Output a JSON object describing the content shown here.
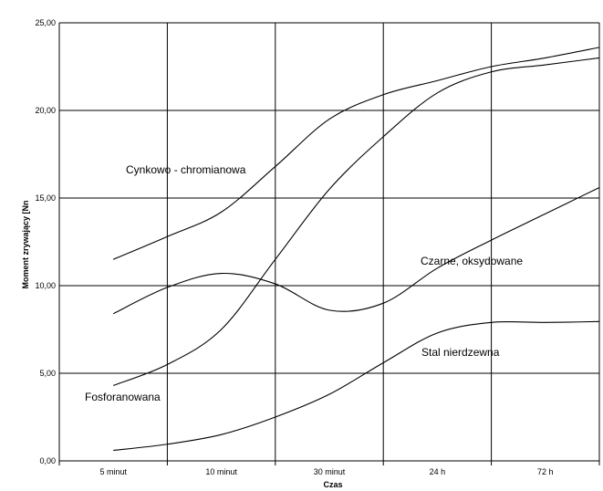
{
  "chart_data": {
    "type": "line",
    "title": "",
    "xlabel": "Czas",
    "ylabel": "Moment zrywający [Nn",
    "categories": [
      "5 minut",
      "10 minut",
      "30 minut",
      "24 h",
      "72 h"
    ],
    "y_ticks": [
      "0,00",
      "5,00",
      "10,00",
      "15,00",
      "20,00",
      "25,00"
    ],
    "ylim": [
      0,
      25
    ],
    "grid": true,
    "legend": "none",
    "series": [
      {
        "name": "Cynkowo - chromianowa",
        "x": [
          0,
          0.5,
          1,
          1.5,
          2,
          2.5,
          3,
          3.5,
          4,
          4.5
        ],
        "values": [
          11.5,
          12.8,
          14.2,
          16.8,
          19.5,
          20.9,
          21.7,
          22.5,
          23.0,
          23.6
        ]
      },
      {
        "name": "Fosforanowana",
        "x": [
          0,
          0.5,
          1,
          1.5,
          2,
          2.5,
          3,
          3.5,
          4,
          4.5
        ],
        "values": [
          4.3,
          5.5,
          7.5,
          11.5,
          15.5,
          18.5,
          21.0,
          22.2,
          22.6,
          23.0
        ]
      },
      {
        "name": "Czarne, oksydowane",
        "x": [
          0,
          0.5,
          1,
          1.5,
          2,
          2.5,
          3,
          3.5,
          4,
          4.5
        ],
        "values": [
          8.4,
          9.9,
          10.7,
          10.1,
          8.6,
          9.0,
          11.0,
          12.6,
          14.1,
          15.6
        ]
      },
      {
        "name": "Stal nierdzewna",
        "x": [
          0,
          0.5,
          1,
          1.5,
          2,
          2.5,
          3,
          3.5,
          4,
          4.5
        ],
        "values": [
          0.6,
          0.95,
          1.5,
          2.5,
          3.8,
          5.6,
          7.3,
          7.9,
          7.9,
          7.95
        ]
      }
    ]
  }
}
